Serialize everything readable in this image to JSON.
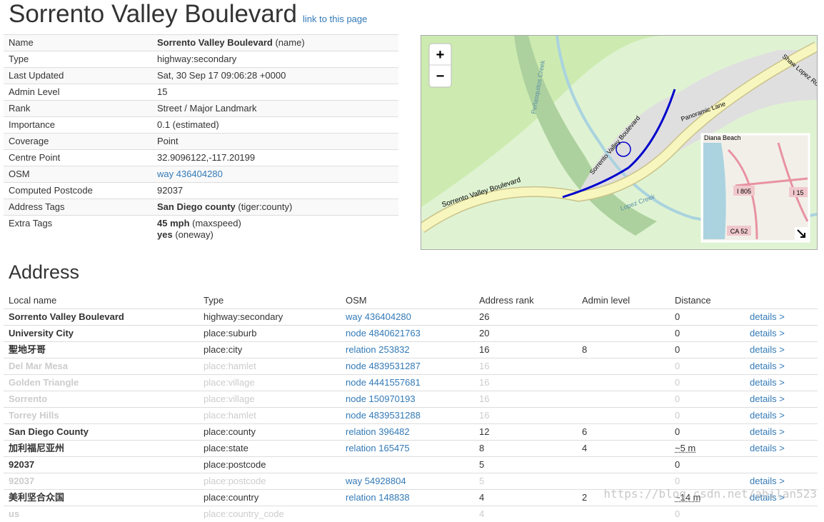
{
  "header": {
    "title": "Sorrento Valley Boulevard",
    "link": "link to this page"
  },
  "details": [
    {
      "label": "Name",
      "lines": [
        {
          "bold": "Sorrento Valley Boulevard",
          "text": "(name)"
        }
      ]
    },
    {
      "label": "Type",
      "lines": [
        {
          "text": "highway:secondary"
        }
      ]
    },
    {
      "label": "Last Updated",
      "lines": [
        {
          "text": "Sat, 30 Sep 17 09:06:28 +0000"
        }
      ]
    },
    {
      "label": "Admin Level",
      "lines": [
        {
          "text": "15"
        }
      ]
    },
    {
      "label": "Rank",
      "lines": [
        {
          "text": "Street / Major Landmark"
        }
      ]
    },
    {
      "label": "Importance",
      "lines": [
        {
          "text": "0.1 (estimated)"
        }
      ]
    },
    {
      "label": "Coverage",
      "lines": [
        {
          "text": "Point"
        }
      ]
    },
    {
      "label": "Centre Point",
      "lines": [
        {
          "text": "32.9096122,-117.20199"
        }
      ]
    },
    {
      "label": "OSM",
      "lines": [
        {
          "text": "way 436404280"
        }
      ],
      "link": true
    },
    {
      "label": "Computed Postcode",
      "lines": [
        {
          "text": "92037"
        }
      ]
    },
    {
      "label": "Address Tags",
      "lines": [
        {
          "bold": "San Diego county",
          "text": "(tiger:county)"
        }
      ]
    },
    {
      "label": "Extra Tags",
      "lines": [
        {
          "bold": "45 mph",
          "text": "(maxspeed)"
        },
        {
          "bold": "yes",
          "text": "(oneway)"
        }
      ]
    }
  ],
  "map": {
    "zoom_in": "+",
    "zoom_out": "−",
    "road": "Sorrento Valley Boulevard",
    "road_label_2": "Sorrento Valley Boulevard",
    "shaw": "Shaw Lopez Road",
    "panoramic": "Panoramic Lane",
    "creek": "Peñasquitos Creek",
    "lopez": "Lopez Creek",
    "mini": {
      "beach": "Diana Beach",
      "i805": "I 805",
      "i15": "I 15",
      "ca52": "CA 52"
    }
  },
  "address": {
    "title": "Address",
    "columns": [
      "Local name",
      "Type",
      "OSM",
      "Address rank",
      "Admin level",
      "Distance"
    ],
    "rows": [
      {
        "name": "Sorrento Valley Boulevard",
        "type": "highway:secondary",
        "osm": "way 436404280",
        "rank": 26,
        "admin": null,
        "distance": "0",
        "details": "details >",
        "faded": false
      },
      {
        "name": "University City",
        "type": "place:suburb",
        "osm": "node 4840621763",
        "rank": 20,
        "admin": null,
        "distance": "0",
        "details": "details >",
        "faded": false
      },
      {
        "name": "聖地牙哥",
        "type": "place:city",
        "osm": "relation 253832",
        "rank": 16,
        "admin": 8,
        "distance": "0",
        "details": "details >",
        "faded": false
      },
      {
        "name": "Del Mar Mesa",
        "type": "place:hamlet",
        "osm": "node 4839531287",
        "rank": 16,
        "admin": null,
        "distance": "0",
        "details": "details >",
        "faded": true
      },
      {
        "name": "Golden Triangle",
        "type": "place:village",
        "osm": "node 4441557681",
        "rank": 16,
        "admin": null,
        "distance": "0",
        "details": "details >",
        "faded": true
      },
      {
        "name": "Sorrento",
        "type": "place:village",
        "osm": "node 150970193",
        "rank": 16,
        "admin": null,
        "distance": "0",
        "details": "details >",
        "faded": true
      },
      {
        "name": "Torrey Hills",
        "type": "place:hamlet",
        "osm": "node 4839531288",
        "rank": 16,
        "admin": null,
        "distance": "0",
        "details": "details >",
        "faded": true
      },
      {
        "name": "San Diego County",
        "type": "place:county",
        "osm": "relation 396482",
        "rank": 12,
        "admin": 6,
        "distance": "0",
        "details": "details >",
        "faded": false
      },
      {
        "name": "加利福尼亚州",
        "type": "place:state",
        "osm": "relation 165475",
        "rank": 8,
        "admin": 4,
        "distance": "~5 m",
        "details": "details >",
        "faded": false
      },
      {
        "name": "92037",
        "type": "place:postcode",
        "osm": null,
        "rank": 5,
        "admin": null,
        "distance": "0",
        "details": null,
        "faded": false
      },
      {
        "name": "92037",
        "type": "place:postcode",
        "osm": "way 54928804",
        "rank": 5,
        "admin": null,
        "distance": "0",
        "details": "details >",
        "faded": true
      },
      {
        "name": "美利坚合众国",
        "type": "place:country",
        "osm": "relation 148838",
        "rank": 4,
        "admin": 2,
        "distance": "~14 m",
        "details": "details >",
        "faded": false
      },
      {
        "name": "us",
        "type": "place:country_code",
        "osm": null,
        "rank": 4,
        "admin": null,
        "distance": "0",
        "details": null,
        "faded": true
      }
    ]
  },
  "watermark": "https://blog.csdn.net/ahilan523"
}
